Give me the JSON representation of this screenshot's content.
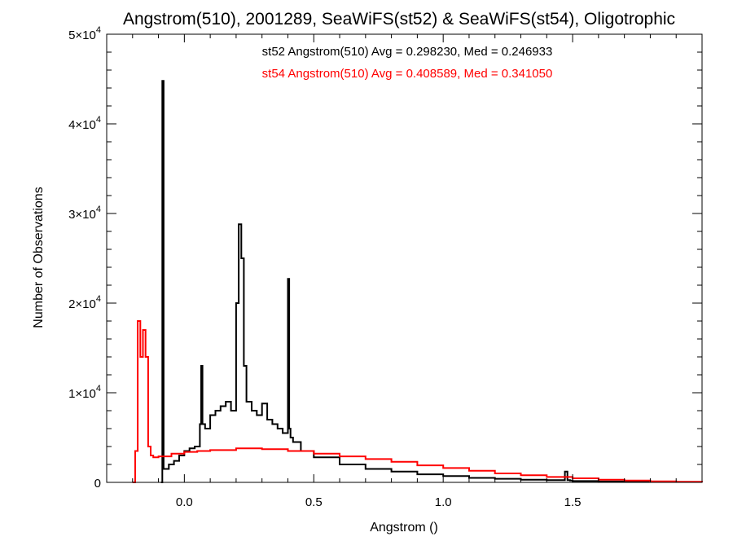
{
  "chart_data": {
    "type": "line",
    "title": "Angstrom(510), 2001289, SeaWiFS(st52) & SeaWiFS(st54), Oligotrophic",
    "xlabel": "Angstrom ()",
    "ylabel": "Number of Observations",
    "xlim": [
      -0.3,
      2.0
    ],
    "ylim": [
      0,
      50000
    ],
    "x_ticks": [
      0.0,
      0.5,
      1.0,
      1.5
    ],
    "x_tick_labels": [
      "0.0",
      "0.5",
      "1.0",
      "1.5"
    ],
    "y_ticks": [
      0,
      10000,
      20000,
      30000,
      40000,
      50000
    ],
    "y_tick_labels": [
      {
        "mant": "0",
        "exp": ""
      },
      {
        "mant": "1×10",
        "exp": "4"
      },
      {
        "mant": "2×10",
        "exp": "4"
      },
      {
        "mant": "3×10",
        "exp": "4"
      },
      {
        "mant": "4×10",
        "exp": "4"
      },
      {
        "mant": "5×10",
        "exp": "4"
      }
    ],
    "grid": false,
    "legend_position": "top-center",
    "series": [
      {
        "name": "st52 Angstrom(510) Avg = 0.298230, Med = 0.246933",
        "color": "#000000",
        "x": [
          -0.09,
          -0.085,
          -0.08,
          -0.06,
          -0.04,
          -0.02,
          0.0,
          0.02,
          0.04,
          0.06,
          0.065,
          0.07,
          0.08,
          0.1,
          0.12,
          0.14,
          0.16,
          0.18,
          0.2,
          0.21,
          0.22,
          0.23,
          0.24,
          0.26,
          0.28,
          0.3,
          0.32,
          0.34,
          0.36,
          0.38,
          0.4,
          0.405,
          0.41,
          0.42,
          0.45,
          0.5,
          0.6,
          0.7,
          0.8,
          0.9,
          1.0,
          1.1,
          1.2,
          1.3,
          1.4,
          1.47,
          1.48,
          1.49,
          1.5,
          1.6,
          1.7,
          1.8,
          1.9,
          2.0
        ],
        "y": [
          0,
          44800,
          1500,
          2000,
          2400,
          3000,
          3500,
          3800,
          4000,
          6500,
          13000,
          6500,
          6000,
          7500,
          8000,
          8500,
          9000,
          8000,
          20000,
          28800,
          25000,
          13000,
          9000,
          8000,
          7500,
          8800,
          7000,
          6500,
          6000,
          5500,
          22700,
          6000,
          5000,
          4500,
          3500,
          2800,
          2000,
          1500,
          1200,
          900,
          700,
          500,
          400,
          300,
          250,
          1200,
          250,
          200,
          150,
          100,
          80,
          60,
          50,
          40
        ]
      },
      {
        "name": "st54 Angstrom(510) Avg = 0.408589, Med = 0.341050",
        "color": "#ff0000",
        "x": [
          -0.2,
          -0.19,
          -0.18,
          -0.17,
          -0.16,
          -0.15,
          -0.14,
          -0.13,
          -0.12,
          -0.1,
          -0.05,
          0.0,
          0.05,
          0.1,
          0.2,
          0.3,
          0.4,
          0.5,
          0.6,
          0.7,
          0.8,
          0.9,
          1.0,
          1.1,
          1.2,
          1.3,
          1.4,
          1.5,
          1.6,
          1.7,
          1.8,
          1.9,
          2.0
        ],
        "y": [
          0,
          3500,
          18000,
          14000,
          17000,
          14000,
          4000,
          3000,
          2800,
          2900,
          3200,
          3400,
          3500,
          3600,
          3800,
          3700,
          3500,
          3200,
          2900,
          2600,
          2300,
          1900,
          1600,
          1300,
          1000,
          800,
          600,
          450,
          300,
          200,
          120,
          70,
          40
        ]
      }
    ]
  }
}
